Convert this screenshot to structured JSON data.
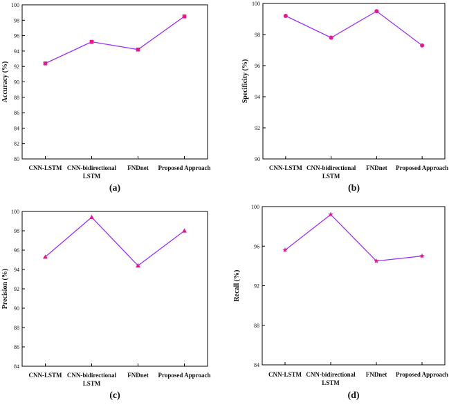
{
  "colors": {
    "line": "#9b30ff",
    "marker": "#e8158c",
    "axis": "#000000"
  },
  "chart_data": [
    {
      "id": "a",
      "type": "line",
      "panel_label": "(a)",
      "title": "",
      "xlabel": "",
      "ylabel": "Accuracy (%)",
      "categories": [
        "CNN-LSTM",
        "CNN-bidirectional\nLSTM",
        "FNDnet",
        "Proposed Approach"
      ],
      "values": [
        92.4,
        95.2,
        94.2,
        98.5
      ],
      "ylim": [
        80,
        100
      ],
      "yticks": [
        80,
        82,
        84,
        86,
        88,
        90,
        92,
        94,
        96,
        98,
        100
      ],
      "marker": "square",
      "grid": false
    },
    {
      "id": "b",
      "type": "line",
      "panel_label": "(b)",
      "title": "",
      "xlabel": "",
      "ylabel": "Specificity (%)",
      "categories": [
        "CNN-LSTM",
        "CNN-bidirectional\nLSTM",
        "FNDnet",
        "Proposed Approach"
      ],
      "values": [
        99.2,
        97.8,
        99.5,
        97.3
      ],
      "ylim": [
        90,
        100
      ],
      "yticks": [
        90,
        92,
        94,
        96,
        98,
        100
      ],
      "marker": "circle",
      "grid": false
    },
    {
      "id": "c",
      "type": "line",
      "panel_label": "(c)",
      "title": "",
      "xlabel": "",
      "ylabel": "Precision (%)",
      "categories": [
        "CNN-LSTM",
        "CNN-bidirectional\nLSTM",
        "FNDnet",
        "Proposed Approach"
      ],
      "values": [
        95.3,
        99.4,
        94.4,
        98.0
      ],
      "ylim": [
        84,
        100
      ],
      "yticks": [
        84,
        86,
        88,
        90,
        92,
        94,
        96,
        98,
        100
      ],
      "marker": "triangle",
      "grid": false
    },
    {
      "id": "d",
      "type": "line",
      "panel_label": "(d)",
      "title": "",
      "xlabel": "",
      "ylabel": "Recall (%)",
      "categories": [
        "CNN-LSTM",
        "CNN-bidirectional\nLSTM",
        "FNDnet",
        "Proposed Approach"
      ],
      "values": [
        95.6,
        99.2,
        94.5,
        95.0
      ],
      "ylim": [
        84,
        100
      ],
      "yticks": [
        84,
        88,
        92,
        96,
        100
      ],
      "marker": "star",
      "grid": false
    }
  ]
}
